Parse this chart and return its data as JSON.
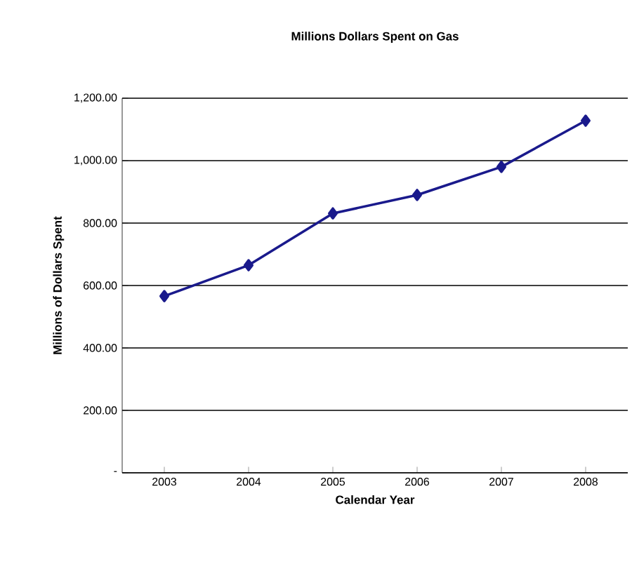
{
  "chart_data": {
    "type": "line",
    "title": "Millions Dollars Spent on Gas",
    "xlabel": "Calendar Year",
    "ylabel": "Millions of Dollars Spent",
    "categories": [
      "2003",
      "2004",
      "2005",
      "2006",
      "2007",
      "2008"
    ],
    "values": [
      566,
      665,
      831,
      890,
      980,
      1128
    ],
    "color": "#1a1a8c",
    "marker": "diamond",
    "line_style": "solid",
    "ylim": [
      0,
      1200
    ],
    "yticks": [
      {
        "value": 0,
        "label": "-"
      },
      {
        "value": 200,
        "label": "200.00"
      },
      {
        "value": 400,
        "label": "400.00"
      },
      {
        "value": 600,
        "label": "600.00"
      },
      {
        "value": 800,
        "label": "800.00"
      },
      {
        "value": 1000,
        "label": "1,000.00"
      },
      {
        "value": 1200,
        "label": "1,200.00"
      }
    ],
    "grid": "y"
  }
}
